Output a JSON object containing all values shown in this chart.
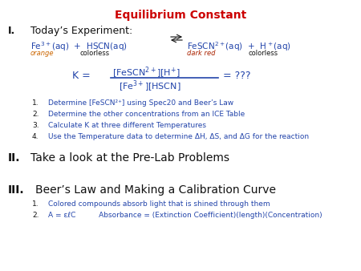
{
  "title": "Equilibrium Constant",
  "title_color": "#cc0000",
  "bg_color": "#ffffff",
  "blue_color": "#2244aa",
  "orange_color": "#cc6600",
  "darkred_color": "#aa2200",
  "black_color": "#111111",
  "list1": [
    "Determine [FeSCN²⁺] using Spec20 and Beer’s Law",
    "Determine the other concentrations from an ICE Table",
    "Calculate K at three different Temperatures",
    "Use the Temperature data to determine ΔH, ΔS, and ΔG for the reaction"
  ],
  "section_II_title": "Take a look at the Pre-Lab Problems",
  "section_III_title": "Beer’s Law and Making a Calibration Curve",
  "list3_1": "Colored compounds absorb light that is shined through them",
  "list3_2": "A = εℓC          Absorbance = (Extinction Coefficient)(length)(Concentration)"
}
